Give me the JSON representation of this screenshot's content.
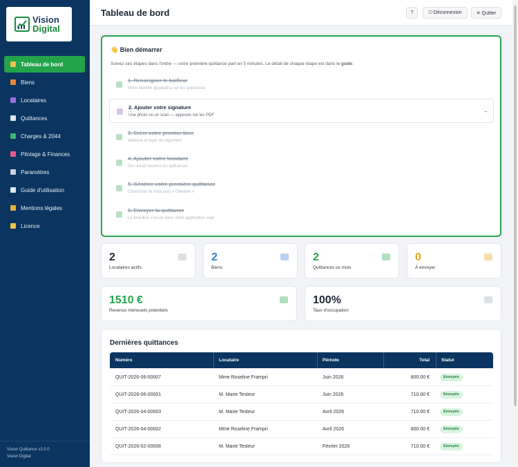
{
  "brand": {
    "line1": "Vision",
    "line2": "Digital"
  },
  "sidebar": {
    "items": [
      {
        "label": "Tableau de bord",
        "icon": "dashboard-icon",
        "color": "#f0c24b",
        "active": true
      },
      {
        "label": "Biens",
        "icon": "building-icon",
        "color": "#e58a3a"
      },
      {
        "label": "Locataires",
        "icon": "users-icon",
        "color": "#9b6ee0"
      },
      {
        "label": "Quittances",
        "icon": "document-icon",
        "color": "#dfe6ee"
      },
      {
        "label": "Charges & 2044",
        "icon": "money-icon",
        "color": "#3fb56a"
      },
      {
        "label": "Pilotage & Finances",
        "icon": "chart-icon",
        "color": "#e25c8c"
      },
      {
        "label": "Paramètres",
        "icon": "gear-icon",
        "color": "#c8d0da"
      },
      {
        "label": "Guide d'utilisation",
        "icon": "book-icon",
        "color": "#dfe6ee"
      },
      {
        "label": "Mentions légales",
        "icon": "scale-icon",
        "color": "#e0b040"
      },
      {
        "label": "Licence",
        "icon": "key-icon",
        "color": "#f0c24b"
      }
    ],
    "footer": {
      "version": "Vision Quittance v2.0.0",
      "company": "Vision Digital"
    }
  },
  "header": {
    "title": "Tableau de bord",
    "help_label": "?",
    "logout_label": "⎋ Déconnexion",
    "quit_label": "✕ Quitter"
  },
  "onboarding": {
    "title": "👋 Bien démarrer",
    "subtitle_prefix": "Suivez ces étapes dans l'ordre — votre première quittance part en 5 minutes. Le détail de chaque étape est dans le ",
    "subtitle_link": "guide",
    "subtitle_suffix": ".",
    "steps": [
      {
        "title": "1. Renseigner le bailleur",
        "desc": "Votre identité apparaîtra sur les quittances",
        "done": true
      },
      {
        "title": "2. Ajouter votre signature",
        "desc": "Une photo ou un scan — apposée sur les PDF",
        "done": false
      },
      {
        "title": "3. Créer votre premier bien",
        "desc": "Adresse et loyer du logement",
        "done": true
      },
      {
        "title": "4. Ajouter votre locataire",
        "desc": "Son email recevra les quittances",
        "done": true
      },
      {
        "title": "5. Générer votre première quittance",
        "desc": "Choisissez le mois puis « Générer »",
        "done": true
      },
      {
        "title": "6. Envoyer la quittance",
        "desc": "Le brouillon s'ouvre dans votre application mail",
        "done": true
      }
    ],
    "arrow": "→"
  },
  "stats": [
    {
      "value": "2",
      "label": "Locataires actifs",
      "color": "#1d2733",
      "icon": "users-icon"
    },
    {
      "value": "2",
      "label": "Biens",
      "color": "#2f7fd1",
      "icon": "house-icon"
    },
    {
      "value": "2",
      "label": "Quittances ce mois",
      "color": "#23a34a",
      "icon": "document-icon"
    },
    {
      "value": "0",
      "label": "À envoyer",
      "color": "#e8a21a",
      "icon": "mail-icon"
    }
  ],
  "stats2": [
    {
      "value": "1510 €",
      "label": "Revenus mensuels potentiels",
      "color": "#23a34a",
      "icon": "money-icon"
    },
    {
      "value": "100%",
      "label": "Taux d'occupation",
      "color": "#1d2733",
      "icon": "chart-icon"
    }
  ],
  "recent": {
    "title": "Dernières quittances",
    "columns": [
      "Numéro",
      "Locataire",
      "Période",
      "Total",
      "Statut"
    ],
    "rows": [
      {
        "numero": "QUIT-2026-06-00007",
        "locataire": "Mme Roseline Frampri",
        "periode": "Juin 2026",
        "total": "800.00 €",
        "statut": "Envoyée"
      },
      {
        "numero": "QUIT-2026-06-00001",
        "locataire": "M. Marie Testeur",
        "periode": "Juin 2026",
        "total": "710.00 €",
        "statut": "Envoyée"
      },
      {
        "numero": "QUIT-2026-04-00003",
        "locataire": "M. Marie Testeur",
        "periode": "Avril 2026",
        "total": "710.00 €",
        "statut": "Envoyée"
      },
      {
        "numero": "QUIT-2026-04-00002",
        "locataire": "Mme Roseline Frampri",
        "periode": "Avril 2026",
        "total": "800.00 €",
        "statut": "Envoyée"
      },
      {
        "numero": "QUIT-2026-02-00006",
        "locataire": "M. Marie Testeur",
        "periode": "Février 2026",
        "total": "710.00 €",
        "statut": "Envoyée"
      }
    ]
  }
}
